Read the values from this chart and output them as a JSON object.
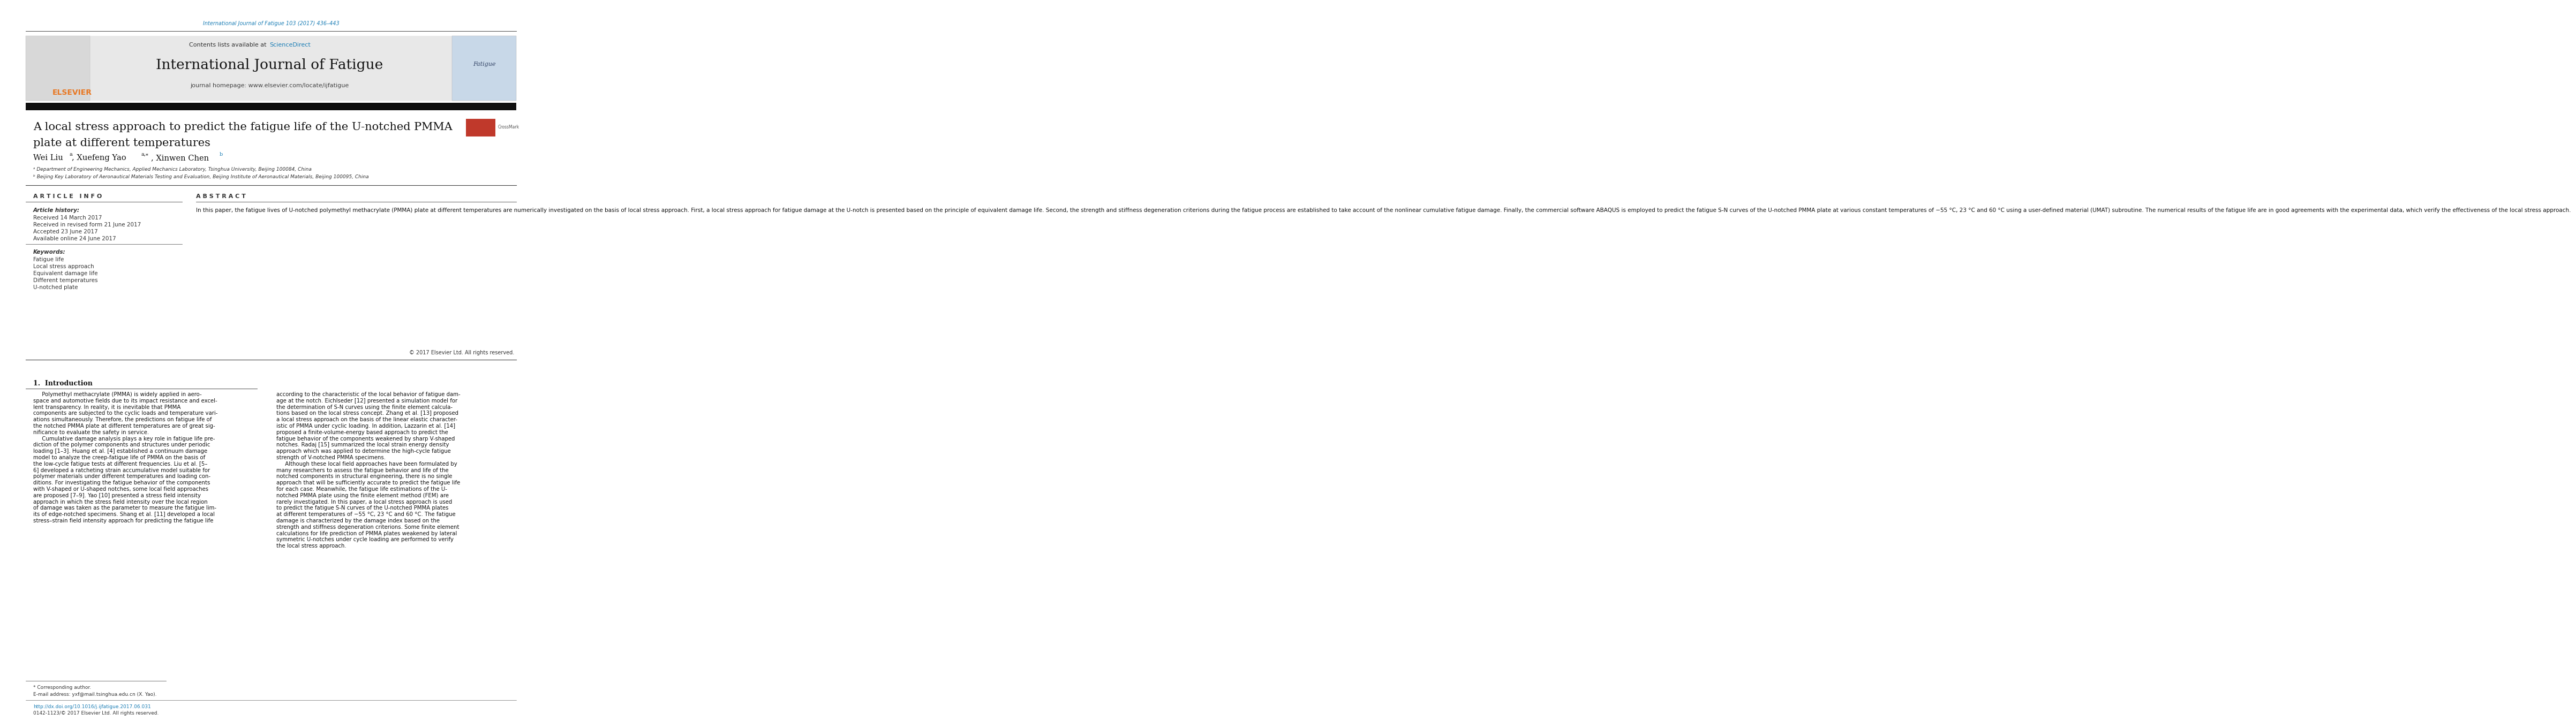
{
  "page_width": 9.92,
  "page_height": 13.23,
  "bg_color": "#ffffff",
  "top_link_text": "International Journal of Fatigue 103 (2017) 436–443",
  "top_link_color": "#1a7db5",
  "header_bg": "#e8e8e8",
  "header_contents_text": "Contents lists available at ",
  "header_sciencedirect": "ScienceDirect",
  "header_sciencedirect_color": "#1a7db5",
  "journal_name": "International Journal of Fatigue",
  "journal_homepage_text": "journal homepage: www.elsevier.com/locate/ijfatigue",
  "elsevier_color": "#e87722",
  "black_bar_color": "#111111",
  "article_title_line1": "A local stress approach to predict the fatigue life of the U-notched PMMA",
  "article_title_line2": "plate at different temperatures",
  "affil_a": "ᵃ Department of Engineering Mechanics, Applied Mechanics Laboratory, Tsinghua University, Beijing 100084, China",
  "affil_b": "ᵇ Beijing Key Laboratory of Aeronautical Materials Testing and Evaluation, Beijing Institute of Aeronautical Materials, Beijing 100095, China",
  "article_info_title": "A R T I C L E   I N F O",
  "article_history_title": "Article history:",
  "received": "Received 14 March 2017",
  "revised": "Received in revised form 21 June 2017",
  "accepted": "Accepted 23 June 2017",
  "available": "Available online 24 June 2017",
  "keywords_title": "Keywords:",
  "keywords": [
    "Fatigue life",
    "Local stress approach",
    "Equivalent damage life",
    "Different temperatures",
    "U-notched plate"
  ],
  "abstract_title": "A B S T R A C T",
  "abstract_text": "In this paper, the fatigue lives of U-notched polymethyl methacrylate (PMMA) plate at different temperatures are numerically investigated on the basis of local stress approach. First, a local stress approach for fatigue damage at the U-notch is presented based on the principle of equivalent damage life. Second, the strength and stiffness degeneration criterions during the fatigue process are established to take account of the nonlinear cumulative fatigue damage. Finally, the commercial software ABAQUS is employed to predict the fatigue S-N curves of the U-notched PMMA plate at various constant temperatures of −55 °C, 23 °C and 60 °C using a user-defined material (UMAT) subroutine. The numerical results of the fatigue life are in good agreements with the experimental data, which verify the effectiveness of the local stress approach.",
  "copyright_text": "© 2017 Elsevier Ltd. All rights reserved.",
  "intro_title": "1.  Introduction",
  "intro_col1_lines": [
    "     Polymethyl methacrylate (PMMA) is widely applied in aero-",
    "space and automotive fields due to its impact resistance and excel-",
    "lent transparency. In reality, it is inevitable that PMMA",
    "components are subjected to the cyclic loads and temperature vari-",
    "ations simultaneously. Therefore, the predictions on fatigue life of",
    "the notched PMMA plate at different temperatures are of great sig-",
    "nificance to evaluate the safety in service.",
    "     Cumulative damage analysis plays a key role in fatigue life pre-",
    "diction of the polymer components and structures under periodic",
    "loading [1–3]. Huang et al. [4] established a continuum damage",
    "model to analyze the creep-fatigue life of PMMA on the basis of",
    "the low-cycle fatigue tests at different frequencies. Liu et al. [5–",
    "6] developed a ratcheting strain accumulative model suitable for",
    "polymer materials under different temperatures and loading con-",
    "ditions. For investigating the fatigue behavior of the components",
    "with V-shaped or U-shaped notches, some local field approaches",
    "are proposed [7–9]. Yao [10] presented a stress field intensity",
    "approach in which the stress field intensity over the local region",
    "of damage was taken as the parameter to measure the fatigue lim-",
    "its of edge-notched specimens. Shang et al. [11] developed a local",
    "stress–strain field intensity approach for predicting the fatigue life"
  ],
  "intro_col2_lines": [
    "according to the characteristic of the local behavior of fatigue dam-",
    "age at the notch. Eichlseder [12] presented a simulation model for",
    "the determination of S-N curves using the finite element calcula-",
    "tions based on the local stress concept. Zhang et al. [13] proposed",
    "a local stress approach on the basis of the linear elastic character-",
    "istic of PMMA under cyclic loading. In addition, Lazzarin et al. [14]",
    "proposed a finite-volume-energy based approach to predict the",
    "fatigue behavior of the components weakened by sharp V-shaped",
    "notches. Radaj [15] summarized the local strain energy density",
    "approach which was applied to determine the high-cycle fatigue",
    "strength of V-notched PMMA specimens.",
    "     Although these local field approaches have been formulated by",
    "many researchers to assess the fatigue behavior and life of the",
    "notched components in structural engineering, there is no single",
    "approach that will be sufficiently accurate to predict the fatigue life",
    "for each case. Meanwhile, the fatigue life estimations of the U-",
    "notched PMMA plate using the finite element method (FEM) are",
    "rarely investigated. In this paper, a local stress approach is used",
    "to predict the fatigue S-N curves of the U-notched PMMA plates",
    "at different temperatures of −55 °C, 23 °C and 60 °C. The fatigue",
    "damage is characterized by the damage index based on the",
    "strength and stiffness degeneration criterions. Some finite element",
    "calculations for life prediction of PMMA plates weakened by lateral",
    "symmetric U-notches under cycle loading are performed to verify",
    "the local stress approach."
  ],
  "footer_corr": "* Corresponding author.",
  "footer_email": "E-mail address: yxf@mail.tsinghua.edu.cn (X. Yao).",
  "footer_doi": "http://dx.doi.org/10.1016/j.ijfatigue.2017.06.031",
  "footer_issn": "0142-1123/© 2017 Elsevier Ltd. All rights reserved."
}
